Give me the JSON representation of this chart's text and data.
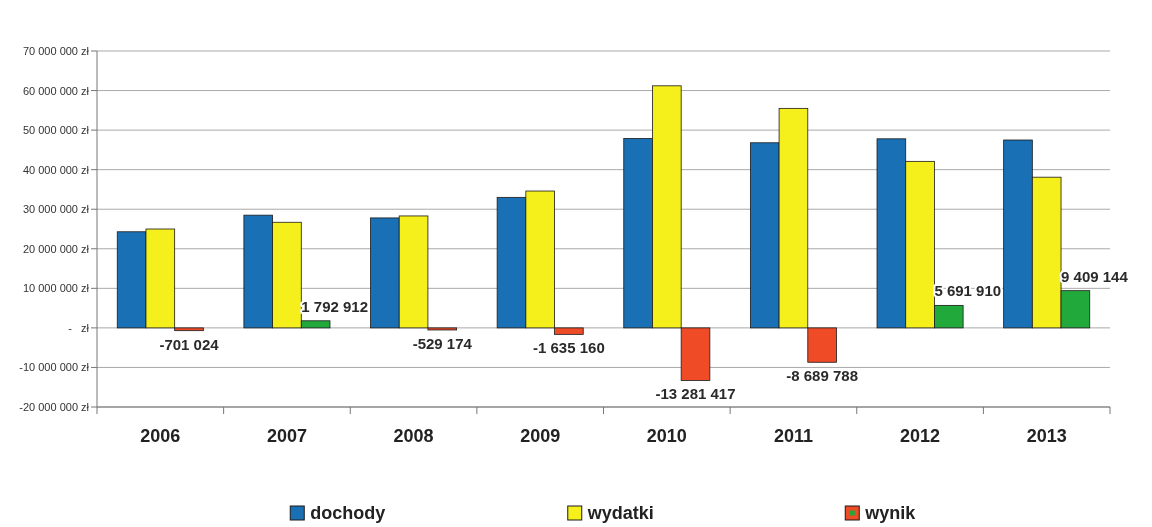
{
  "chart_data": {
    "type": "bar",
    "categories": [
      "2006",
      "2007",
      "2008",
      "2009",
      "2010",
      "2011",
      "2012",
      "2013"
    ],
    "series": [
      {
        "name": "dochody",
        "color": "#1a70b5",
        "values": [
          24300000,
          28500000,
          27800000,
          33000000,
          47900000,
          46800000,
          47800000,
          47500000
        ]
      },
      {
        "name": "wydatki",
        "color": "#f5ef1c",
        "values": [
          25000000,
          26700000,
          28300000,
          34600000,
          61200000,
          55500000,
          42100000,
          38100000
        ]
      },
      {
        "name": "wynik",
        "color": "#ee4b26",
        "colors": [
          "#ee4b26",
          "#22a93c",
          "#ee4b26",
          "#ee4b26",
          "#ee4b26",
          "#ee4b26",
          "#22a93c",
          "#22a93c"
        ],
        "values": [
          -701024,
          1792912,
          -529174,
          -1635160,
          -13281417,
          -8689788,
          5691910,
          9409144
        ],
        "value_labels": [
          "-701 024",
          "1 792 912",
          "-529 174",
          "-1 635 160",
          "-13 281 417",
          "-8 689 788",
          "5 691 910",
          "9 409 144"
        ]
      }
    ],
    "ylim": [
      -20000000,
      70000000
    ],
    "yticks": [
      {
        "value": -20000000,
        "label": "-20 000 000 zł"
      },
      {
        "value": -10000000,
        "label": "-10 000 000 zł"
      },
      {
        "value": 0,
        "label": "-   zł"
      },
      {
        "value": 10000000,
        "label": "10 000 000 zł"
      },
      {
        "value": 20000000,
        "label": "20 000 000 zł"
      },
      {
        "value": 30000000,
        "label": "30 000 000 zł"
      },
      {
        "value": 40000000,
        "label": "40 000 000 zł"
      },
      {
        "value": 50000000,
        "label": "50 000 000 zł"
      },
      {
        "value": 60000000,
        "label": "60 000 000 zł"
      },
      {
        "value": 70000000,
        "label": "70 000 000 zł"
      }
    ],
    "grid": "y",
    "legend": "bottom"
  }
}
